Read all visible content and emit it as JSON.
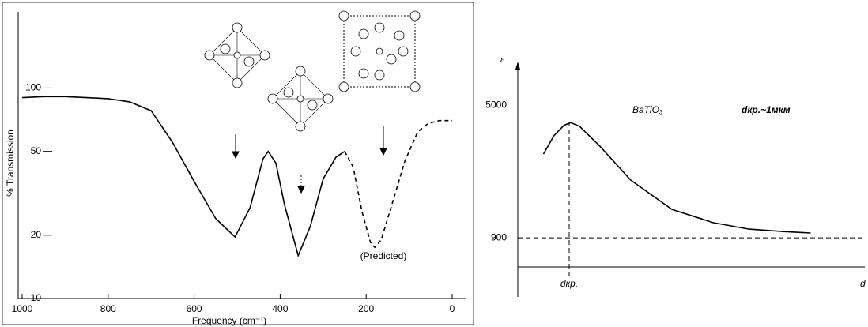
{
  "chart_data": [
    {
      "type": "line",
      "ylabel": "% Transmission",
      "xlabel": "Frequency (cm⁻¹)",
      "annotations": [
        "(Predicted)"
      ],
      "xlim": [
        1000,
        0
      ],
      "xticks": [
        1000,
        800,
        600,
        400,
        200,
        0
      ],
      "ylim": [
        10,
        230
      ],
      "yticks": [
        10,
        20,
        50,
        100
      ],
      "log_y": true,
      "frame": true,
      "series": [
        {
          "color": "#000000",
          "dashed": false,
          "x": [
            1000,
            950,
            900,
            850,
            800,
            750,
            700,
            650,
            600,
            550,
            505,
            470,
            440,
            428,
            410,
            390,
            358,
            330,
            300,
            270,
            250
          ],
          "values": [
            90,
            91,
            91,
            90,
            89,
            86,
            78,
            55,
            36,
            24,
            19.6,
            27,
            46,
            50,
            44,
            28,
            16,
            22,
            37,
            47,
            50
          ]
        },
        {
          "color": "#000000",
          "dashed": true,
          "x": [
            250,
            230,
            210,
            190,
            180,
            165,
            140,
            110,
            80,
            55,
            30,
            0
          ],
          "values": [
            50,
            42,
            26,
            18.5,
            17.5,
            19,
            28,
            45,
            62,
            68,
            70,
            70
          ]
        }
      ]
    },
    {
      "type": "line",
      "title": "BaTiO₃",
      "annotations": [
        "dкр.~1мкм"
      ],
      "ylabel": "ε",
      "xlabel": "d",
      "xlim": [
        0,
        6.6
      ],
      "xticks": [
        {
          "value": 1,
          "label": "dкр."
        }
      ],
      "ylim": [
        0,
        6200
      ],
      "yticks": [
        900,
        5000
      ],
      "reference_lines": [
        {
          "axis": "y",
          "value": 900
        },
        {
          "axis": "x",
          "value": 1
        }
      ],
      "series": [
        {
          "color": "#000000",
          "dashed": false,
          "x": [
            0.5,
            0.7,
            0.9,
            1.03,
            1.2,
            1.6,
            2.2,
            3.0,
            3.8,
            4.5,
            5.2,
            5.7
          ],
          "values": [
            3490,
            4050,
            4380,
            4460,
            4350,
            3730,
            2680,
            1780,
            1370,
            1170,
            1090,
            1050
          ]
        }
      ]
    }
  ]
}
